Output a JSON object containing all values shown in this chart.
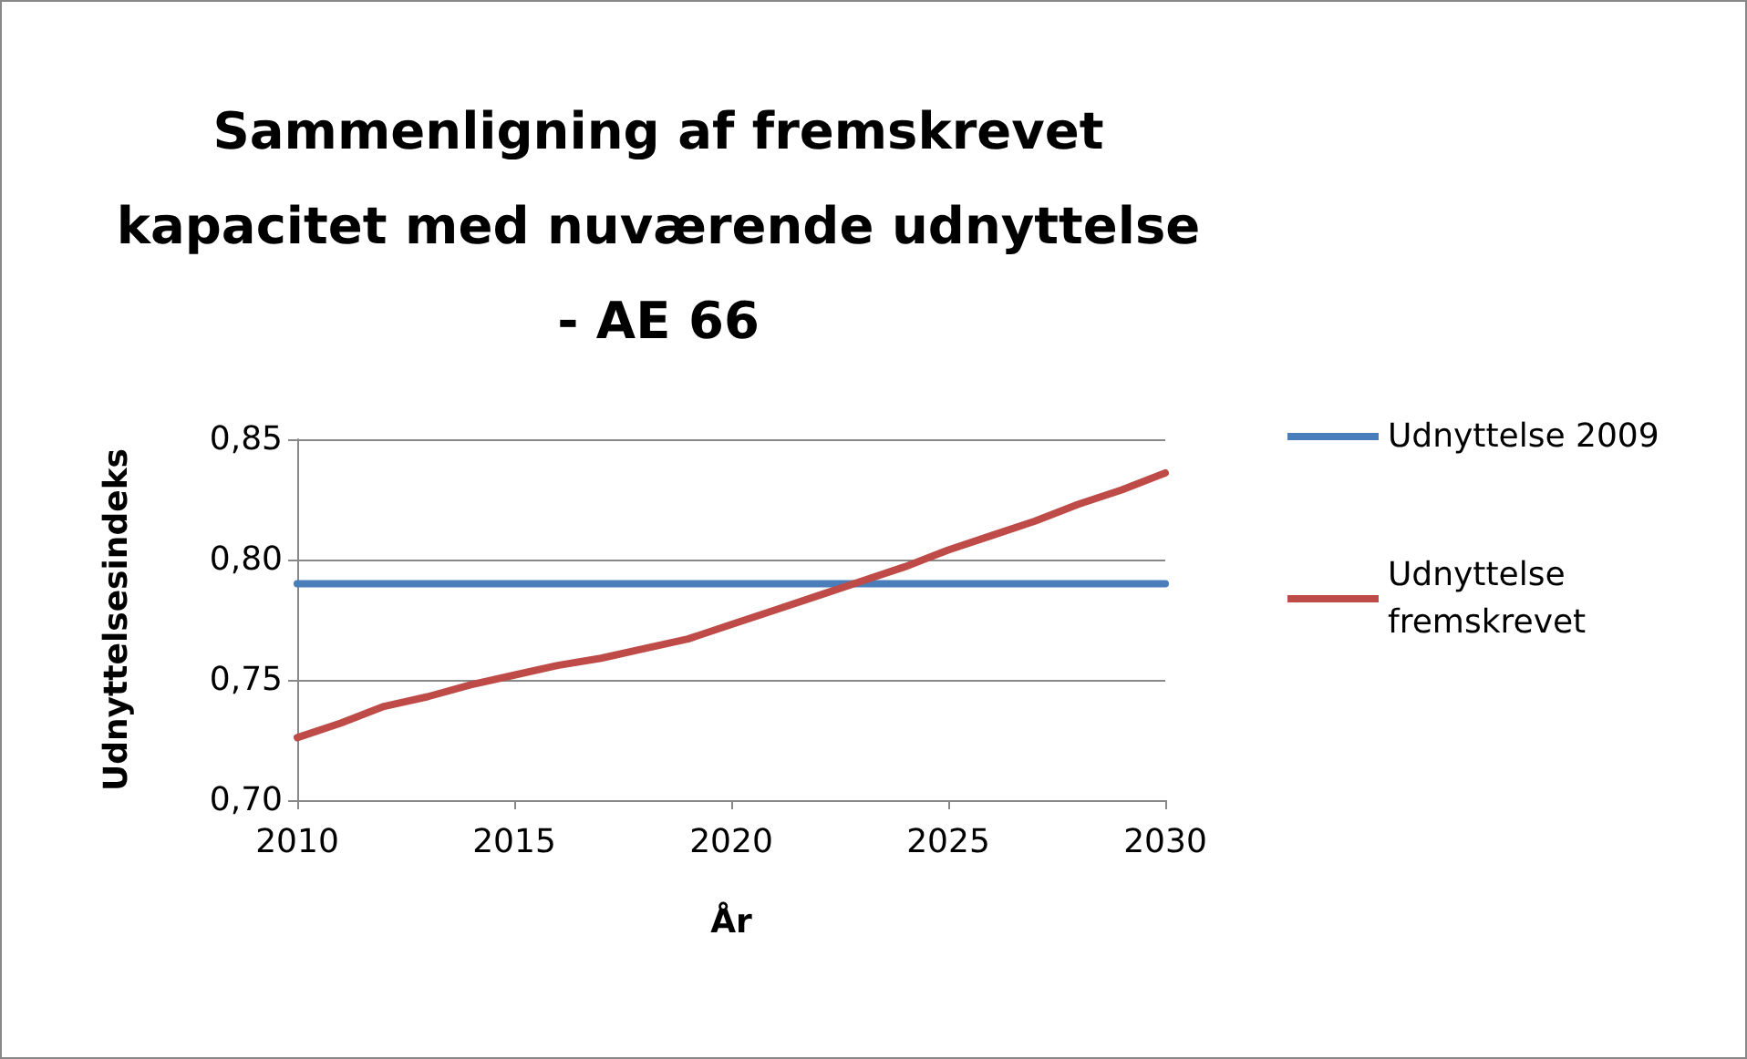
{
  "chart_data": {
    "type": "line",
    "title": "Sammenligning af fremskrevet\nkapacitet med nuværende udnyttelse\n- AE 66",
    "xlabel": "År",
    "ylabel": "Udnyttelsesindeks",
    "x": [
      2010,
      2011,
      2012,
      2013,
      2014,
      2015,
      2016,
      2017,
      2018,
      2019,
      2020,
      2021,
      2022,
      2023,
      2024,
      2025,
      2026,
      2027,
      2028,
      2029,
      2030
    ],
    "series": [
      {
        "name": "Udnyttelse 2009",
        "color": "#4a7ebb",
        "values": [
          0.79,
          0.79,
          0.79,
          0.79,
          0.79,
          0.79,
          0.79,
          0.79,
          0.79,
          0.79,
          0.79,
          0.79,
          0.79,
          0.79,
          0.79,
          0.79,
          0.79,
          0.79,
          0.79,
          0.79,
          0.79
        ]
      },
      {
        "name": "Udnyttelse\nfremskrevet",
        "color": "#be4b48",
        "values": [
          0.726,
          0.732,
          0.739,
          0.743,
          0.748,
          0.752,
          0.756,
          0.759,
          0.763,
          0.767,
          0.773,
          0.779,
          0.785,
          0.791,
          0.797,
          0.804,
          0.81,
          0.816,
          0.823,
          0.829,
          0.836
        ]
      }
    ],
    "xlim": [
      2010,
      2030
    ],
    "xticks": [
      2010,
      2015,
      2020,
      2025,
      2030
    ],
    "ylim": [
      0.7,
      0.85
    ],
    "yticks": [
      {
        "value": 0.7,
        "label": "0,70"
      },
      {
        "value": 0.75,
        "label": "0,75"
      },
      {
        "value": 0.8,
        "label": "0,80"
      },
      {
        "value": 0.85,
        "label": "0,85"
      }
    ],
    "grid": "y",
    "legend": "right",
    "marker": "none",
    "line_style": "solid"
  }
}
